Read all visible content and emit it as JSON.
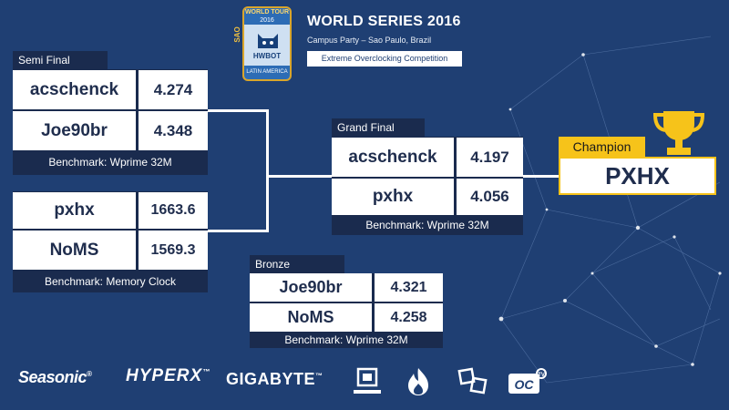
{
  "header": {
    "logo": {
      "world_tour": "WORLD TOUR",
      "year": "2016",
      "hwbot": "HWBOT",
      "latin_america": "LATIN AMERICA",
      "sao_paulo": "SAO PAULO"
    },
    "title": "WORLD SERIES 2016",
    "subtitle": "Campus Party – Sao Paulo, Brazil",
    "competition": "Extreme Overclocking Competition"
  },
  "semi_final": {
    "label": "Semi Final",
    "match1": {
      "rows": [
        {
          "name": "acschenck",
          "score": "4.274"
        },
        {
          "name": "Joe90br",
          "score": "4.348"
        }
      ],
      "benchmark": "Benchmark:  Wprime 32M"
    },
    "match2": {
      "rows": [
        {
          "name": "pxhx",
          "score": "1663.6"
        },
        {
          "name": "NoMS",
          "score": "1569.3"
        }
      ],
      "benchmark": "Benchmark:  Memory Clock"
    }
  },
  "grand_final": {
    "label": "Grand Final",
    "rows": [
      {
        "name": "acschenck",
        "score": "4.197"
      },
      {
        "name": "pxhx",
        "score": "4.056"
      }
    ],
    "benchmark": "Benchmark:  Wprime 32M"
  },
  "bronze": {
    "label": "Bronze",
    "rows": [
      {
        "name": "Joe90br",
        "score": "4.321"
      },
      {
        "name": "NoMS",
        "score": "4.258"
      }
    ],
    "benchmark": "Benchmark:  Wprime 32M"
  },
  "champion": {
    "label": "Champion",
    "name": "PXHX",
    "icon": "trophy-icon",
    "color": "#f6c31a"
  },
  "sponsors": {
    "seasonic": "Seasonic",
    "hyperx": "HYPERX",
    "gigabyte": "GIGABYTE",
    "icons": [
      "computex-icon",
      "flame-icon",
      "gpu-icon",
      "oc-tv-icon"
    ]
  },
  "colors": {
    "background": "#1f3f73",
    "panel": "#1a2b4e",
    "accent": "#f6c31a"
  }
}
